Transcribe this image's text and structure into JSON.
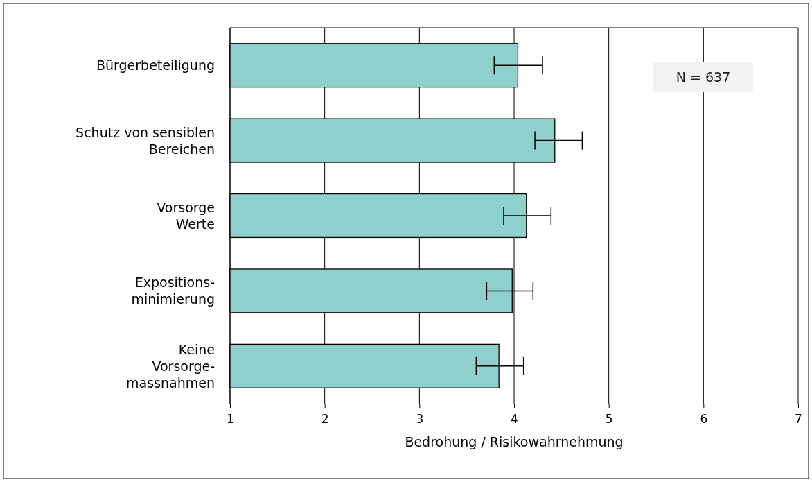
{
  "chart_data": {
    "type": "bar",
    "orientation": "horizontal",
    "xlabel": "Bedrohung / Risikowahrnehmung",
    "categories": [
      "Bürgerbeteiligung",
      "Schutz von sensiblen\nBereichen",
      "Vorsorge\nWerte",
      "Expositions-\nminimierung",
      "Keine\nVorsorge-\nmassnahmen"
    ],
    "values": [
      4.04,
      4.43,
      4.13,
      3.98,
      3.84
    ],
    "errors": [
      [
        3.79,
        4.3
      ],
      [
        4.22,
        4.72
      ],
      [
        3.89,
        4.39
      ],
      [
        3.71,
        4.2
      ],
      [
        3.6,
        4.1
      ]
    ],
    "color": "#8fd0cd",
    "xlim": [
      1,
      7
    ],
    "xticks": [
      1,
      2,
      3,
      4,
      5,
      6,
      7
    ],
    "grid": "x",
    "annotations": [
      "N = 637"
    ]
  }
}
